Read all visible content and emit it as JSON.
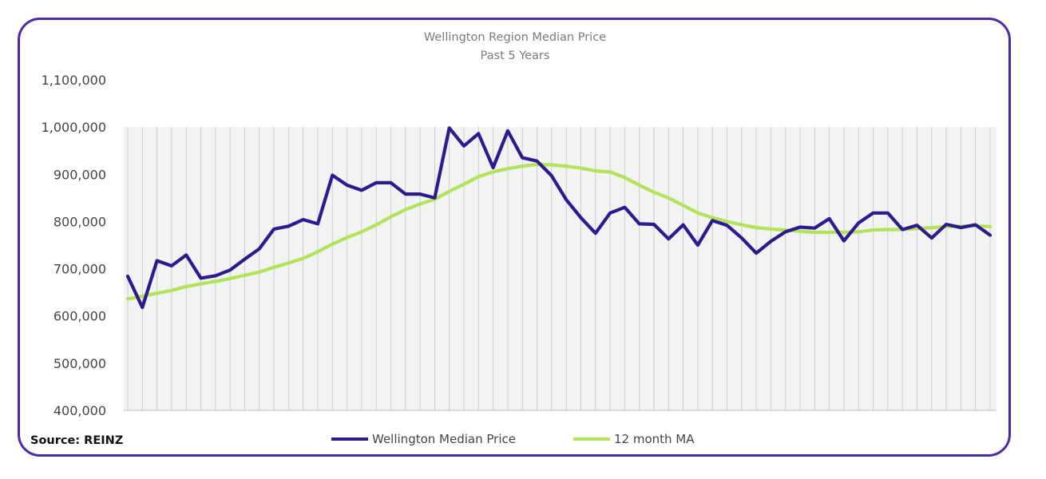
{
  "chart_data": {
    "type": "line",
    "title": "Wellington Region Median Price",
    "subtitle": "Past 5 Years",
    "ylim": [
      400000,
      1100000
    ],
    "y_ticks": [
      "400,000",
      "500,000",
      "600,000",
      "700,000",
      "800,000",
      "900,000",
      "1,000,000",
      "1,100,000"
    ],
    "y_tick_values": [
      400000,
      500000,
      600000,
      700000,
      800000,
      900000,
      1000000,
      1100000
    ],
    "xlabel": "",
    "ylabel": "",
    "grid": "vertical",
    "legend_position": "bottom",
    "source": "Source: REINZ",
    "colors": {
      "median": "#2e1a8f",
      "ma": "#b3e35a",
      "grid": "#c4c4c4",
      "band": "#f3f3f3",
      "border": "#4b2aa3"
    },
    "series": [
      {
        "name": "Wellington Median Price",
        "values": [
          684000,
          618000,
          717000,
          706000,
          729000,
          680000,
          685000,
          697000,
          720000,
          742000,
          784000,
          790000,
          804000,
          795000,
          898000,
          877000,
          866000,
          882000,
          882000,
          858000,
          858000,
          850000,
          998000,
          960000,
          986000,
          914000,
          992000,
          935000,
          928000,
          897000,
          846000,
          808000,
          775000,
          818000,
          830000,
          795000,
          794000,
          763000,
          793000,
          750000,
          802000,
          792000,
          765000,
          733000,
          758000,
          778000,
          788000,
          786000,
          806000,
          759000,
          797000,
          818000,
          818000,
          783000,
          792000,
          765000,
          794000,
          787000,
          793000,
          771000
        ]
      },
      {
        "name": "12 month MA",
        "values": [
          636000,
          642000,
          648000,
          654000,
          662000,
          668000,
          673000,
          679000,
          686000,
          693000,
          703000,
          712000,
          722000,
          736000,
          752000,
          766000,
          778000,
          793000,
          810000,
          825000,
          837000,
          847000,
          864000,
          879000,
          895000,
          905000,
          912000,
          917000,
          921000,
          920000,
          917000,
          913000,
          907000,
          905000,
          893000,
          877000,
          862000,
          850000,
          834000,
          818000,
          808000,
          800000,
          793000,
          787000,
          784000,
          782000,
          779000,
          777000,
          777000,
          777000,
          778000,
          782000,
          783000,
          783000,
          785000,
          787000,
          789000,
          790000,
          791000,
          789000
        ]
      }
    ]
  }
}
